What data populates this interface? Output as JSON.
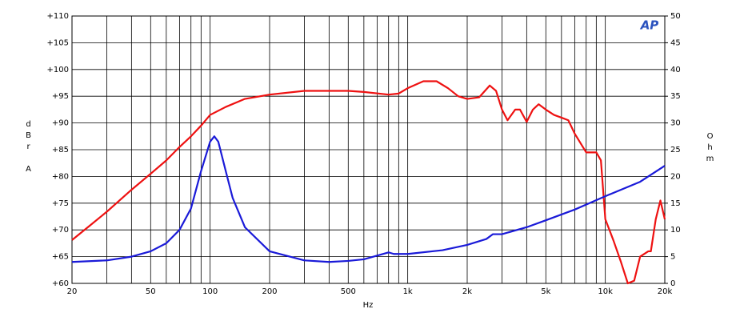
{
  "chart_data": {
    "type": "line",
    "xlabel": "Hz",
    "ylabel": "dBr A",
    "y2label": "Ohm",
    "logo": "AP",
    "xscale": "log",
    "grid": true,
    "xlim": [
      20,
      20000
    ],
    "ylim": [
      60,
      110
    ],
    "y2lim": [
      0,
      50
    ],
    "xticks": [
      20,
      {
        "value": 30,
        "label": null
      },
      {
        "value": 40,
        "label": null
      },
      50,
      {
        "value": 60,
        "label": null
      },
      {
        "value": 70,
        "label": null
      },
      {
        "value": 80,
        "label": null
      },
      {
        "value": 90,
        "label": null
      },
      100,
      200,
      {
        "value": 300,
        "label": null
      },
      {
        "value": 400,
        "label": null
      },
      500,
      {
        "value": 600,
        "label": null
      },
      {
        "value": 700,
        "label": null
      },
      {
        "value": 800,
        "label": null
      },
      {
        "value": 900,
        "label": null
      },
      {
        "value": 1000,
        "label": "1k"
      },
      {
        "value": 2000,
        "label": "2k"
      },
      {
        "value": 3000,
        "label": null
      },
      {
        "value": 4000,
        "label": null
      },
      {
        "value": 5000,
        "label": "5k"
      },
      {
        "value": 6000,
        "label": null
      },
      {
        "value": 7000,
        "label": null
      },
      {
        "value": 8000,
        "label": null
      },
      {
        "value": 9000,
        "label": null
      },
      {
        "value": 10000,
        "label": "10k"
      },
      {
        "value": 20000,
        "label": "20k"
      }
    ],
    "yticks": [
      {
        "value": 60,
        "label": "+60"
      },
      {
        "value": 65,
        "label": "+65"
      },
      {
        "value": 70,
        "label": "+70"
      },
      {
        "value": 75,
        "label": "+75"
      },
      {
        "value": 80,
        "label": "+80"
      },
      {
        "value": 85,
        "label": "+85"
      },
      {
        "value": 90,
        "label": "+90"
      },
      {
        "value": 95,
        "label": "+95"
      },
      {
        "value": 100,
        "label": "+100"
      },
      {
        "value": 105,
        "label": "+105"
      },
      {
        "value": 110,
        "label": "+110"
      }
    ],
    "y2ticks": [
      0,
      5,
      10,
      15,
      20,
      25,
      30,
      35,
      40,
      45,
      50
    ],
    "series": [
      {
        "color": "#ee1111",
        "x": [
          20,
          25,
          30,
          40,
          50,
          60,
          70,
          80,
          90,
          100,
          120,
          150,
          200,
          300,
          500,
          600,
          800,
          900,
          1000,
          1200,
          1400,
          1600,
          1800,
          2000,
          2300,
          2600,
          2800,
          3000,
          3200,
          3500,
          3700,
          4000,
          4300,
          4600,
          5000,
          5500,
          6000,
          6500,
          7000,
          8000,
          9000,
          9500,
          10000,
          11000,
          12000,
          13000,
          14000,
          15000,
          16500,
          17000,
          18000,
          19000,
          20000
        ],
        "values": [
          68.1,
          71,
          73.4,
          77.5,
          80.5,
          83,
          85.5,
          87.5,
          89.5,
          91.5,
          93,
          94.5,
          95.3,
          96,
          96,
          95.8,
          95.3,
          95.5,
          96.5,
          97.8,
          97.8,
          96.5,
          95,
          94.5,
          94.8,
          97,
          96,
          92.5,
          90.5,
          92.5,
          92.5,
          90.2,
          92.5,
          93.5,
          92.5,
          91.5,
          91,
          90.5,
          88,
          84.5,
          84.5,
          83,
          72,
          68,
          64,
          60,
          60.5,
          65,
          66,
          66,
          72,
          75.5,
          72
        ]
      },
      {
        "color": "#1a1ad8",
        "axis": "y2",
        "x": [
          20,
          30,
          40,
          50,
          60,
          70,
          80,
          90,
          100,
          105,
          110,
          120,
          130,
          150,
          200,
          300,
          400,
          500,
          600,
          700,
          800,
          850,
          1000,
          1500,
          2000,
          2500,
          2700,
          3000,
          4000,
          5000,
          7000,
          10000,
          15000,
          20000
        ],
        "values": [
          4,
          4.3,
          5,
          6,
          7.5,
          10,
          14,
          21,
          26.5,
          27.5,
          26.5,
          21,
          16,
          10.5,
          6,
          4.3,
          4,
          4.2,
          4.5,
          5.2,
          5.8,
          5.5,
          5.5,
          6.2,
          7.2,
          8.3,
          9.2,
          9.2,
          10.5,
          11.8,
          13.8,
          16.3,
          19,
          22
        ]
      }
    ]
  }
}
